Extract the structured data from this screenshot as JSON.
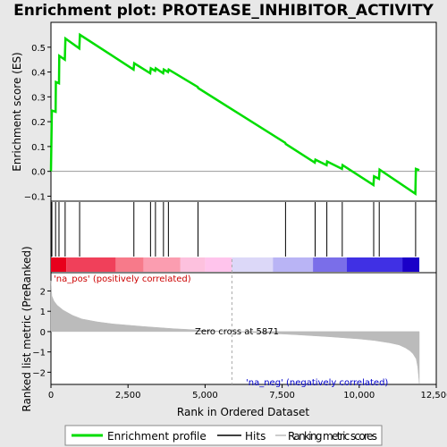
{
  "chart_data": {
    "type": "line",
    "title": "Enrichment plot: PROTEASE_INHIBITOR_ACTIVITY",
    "es_panel": {
      "ylabel": "Enrichment score (ES)",
      "ylim": [
        -0.12,
        0.6
      ],
      "yticks": [
        -0.1,
        0.0,
        0.1,
        0.2,
        0.3,
        0.4,
        0.5
      ],
      "ytick_labels": [
        "−0.1",
        "0.0",
        "0.1",
        "0.2",
        "0.3",
        "0.4",
        "0.5"
      ],
      "series": [
        {
          "name": "Enrichment profile",
          "color": "#00dd00",
          "x": [
            0,
            30,
            150,
            160,
            260,
            270,
            450,
            470,
            920,
            940,
            2680,
            2700,
            3220,
            3240,
            3380,
            3400,
            3640,
            3660,
            3800,
            3820,
            4760,
            4780,
            7600,
            7620,
            8560,
            8580,
            8940,
            8960,
            9440,
            9460,
            10460,
            10480,
            10640,
            10660,
            11820,
            11840,
            11950
          ],
          "y": [
            0.0,
            0.245,
            0.24,
            0.36,
            0.355,
            0.465,
            0.45,
            0.535,
            0.495,
            0.55,
            0.41,
            0.435,
            0.395,
            0.415,
            0.405,
            0.415,
            0.395,
            0.41,
            0.4,
            0.41,
            0.34,
            0.335,
            0.115,
            0.11,
            0.035,
            0.047,
            0.025,
            0.04,
            0.01,
            0.025,
            -0.055,
            -0.02,
            -0.03,
            0.007,
            -0.09,
            0.01,
            0.005
          ]
        }
      ]
    },
    "hits": {
      "name": "Hits",
      "x": [
        30,
        150,
        260,
        460,
        930,
        2690,
        3230,
        3390,
        3650,
        3810,
        4770,
        7610,
        8570,
        8950,
        9450,
        10470,
        10650,
        11830
      ]
    },
    "ranked_panel": {
      "ylabel": "Ranked list metric (PreRanked)",
      "xlabel": "Rank in Ordered Dataset",
      "xlim": [
        0,
        12500
      ],
      "xticks": [
        0,
        2500,
        5000,
        7500,
        10000,
        12500
      ],
      "xtick_labels": [
        "0",
        "2,500",
        "5,000",
        "7,500",
        "10,000",
        "12,500"
      ],
      "ylim": [
        -2.6,
        2.9
      ],
      "yticks": [
        -2,
        -1,
        0,
        1,
        2
      ],
      "ytick_labels": [
        "−2",
        "−1",
        "0",
        "1",
        "2"
      ],
      "series": [
        {
          "name": "Ranking metric scores",
          "color": "#bbbbbb",
          "x": [
            0,
            30,
            100,
            200,
            400,
            700,
            1000,
            1500,
            2000,
            3000,
            4000,
            5000,
            5871,
            7000,
            8000,
            9000,
            10000,
            10500,
            11000,
            11300,
            11500,
            11650,
            11750,
            11850,
            11900,
            11950
          ],
          "y": [
            2.5,
            1.75,
            1.5,
            1.3,
            1.05,
            0.8,
            0.62,
            0.48,
            0.38,
            0.25,
            0.14,
            0.06,
            0.0,
            -0.08,
            -0.16,
            -0.25,
            -0.36,
            -0.44,
            -0.56,
            -0.66,
            -0.8,
            -0.95,
            -1.1,
            -1.35,
            -1.75,
            -2.55
          ]
        }
      ],
      "zero_cross_label": "Zero cross at 5871",
      "zero_cross_x": 5871,
      "pos_label": "'na_pos' (positively correlated)",
      "neg_label": "'na_neg' (negatively correlated)",
      "pos_color": "#cc0000",
      "neg_color": "#0000cc"
    },
    "colorbar": {
      "n": 11950,
      "segments": [
        {
          "from": 0,
          "to": 500,
          "color": "#e8001c"
        },
        {
          "from": 500,
          "to": 2100,
          "color": "#f0405a"
        },
        {
          "from": 2100,
          "to": 3000,
          "color": "#f77a8a"
        },
        {
          "from": 3000,
          "to": 4200,
          "color": "#fb9db0"
        },
        {
          "from": 4200,
          "to": 5000,
          "color": "#fdc1de"
        },
        {
          "from": 5000,
          "to": 5871,
          "color": "#ffc4ec"
        },
        {
          "from": 5871,
          "to": 7200,
          "color": "#dcd8f8"
        },
        {
          "from": 7200,
          "to": 8500,
          "color": "#b9b4f5"
        },
        {
          "from": 8500,
          "to": 9600,
          "color": "#7a6ee9"
        },
        {
          "from": 9600,
          "to": 11400,
          "color": "#4030e4"
        },
        {
          "from": 11400,
          "to": 11950,
          "color": "#1a00c8"
        }
      ]
    },
    "legend": {
      "position": "bottom",
      "items": [
        {
          "label": "Enrichment profile",
          "color": "#00dd00"
        },
        {
          "label": "Hits",
          "color": "#000000"
        },
        {
          "label": "Ranking metric scores",
          "color": "#bbbbbb"
        }
      ]
    }
  }
}
